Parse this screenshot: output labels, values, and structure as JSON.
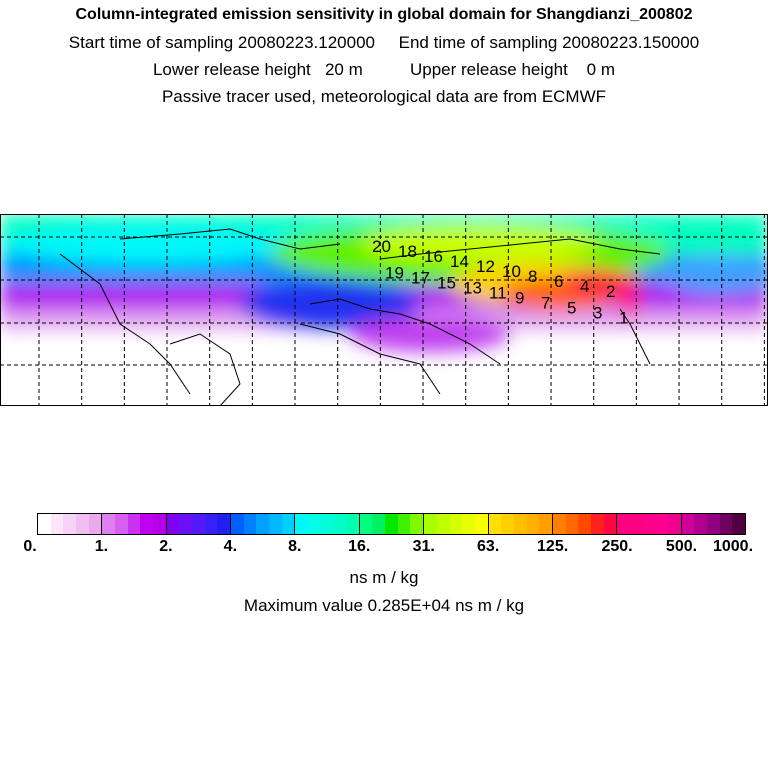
{
  "header": {
    "title": "Column-integrated emission sensitivity in global domain for Shangdianzi_200802",
    "line2": "Start time of sampling 20080223.120000     End time of sampling 20080223.150000",
    "line3": "Lower release height   20 m          Upper release height    0 m",
    "line4": "Passive tracer used, meteorological data are from ECMWF"
  },
  "chart_data": {
    "type": "heatmap",
    "title": "Column-integrated emission sensitivity in global domain for Shangdianzi_200802",
    "colorbar": {
      "tick_labels": [
        "0.",
        "1.",
        "2.",
        "4.",
        "8.",
        "16.",
        "31.",
        "63.",
        "125.",
        "250.",
        "500.",
        "1000."
      ],
      "unit": "ns m / kg",
      "segments": [
        [
          "#ffffff",
          "#fbe6fb",
          "#f6d2f6",
          "#f1bef1",
          "#eaa8ee"
        ],
        [
          "#e080f0",
          "#d860f0",
          "#cc30f0",
          "#c000f0",
          "#b800e8"
        ],
        [
          "#8000f0",
          "#6a10f8",
          "#5518f8",
          "#3a20f8",
          "#2020f0"
        ],
        [
          "#0060ff",
          "#0080ff",
          "#00a0ff",
          "#00b8ff",
          "#00d0ff"
        ],
        [
          "#00f8f8",
          "#00ffe8",
          "#00ffd8",
          "#00ffc8",
          "#00ffb0"
        ],
        [
          "#00ff80",
          "#00f060",
          "#00e800",
          "#40f000",
          "#80f800"
        ],
        [
          "#a8ff00",
          "#c0ff00",
          "#d8ff00",
          "#e8ff00",
          "#f8ff00"
        ],
        [
          "#ffe000",
          "#ffd000",
          "#ffc000",
          "#ffb000",
          "#ffa000"
        ],
        [
          "#ff8000",
          "#ff6800",
          "#ff4800",
          "#ff2020",
          "#ff0840"
        ],
        [
          "#ff0080",
          "#ff0080",
          "#ff0088",
          "#ff0090",
          "#f00090"
        ],
        [
          "#d00098",
          "#b00090",
          "#900080",
          "#700060",
          "#500040"
        ]
      ]
    },
    "max_value_text": "Maximum value  0.285E+04 ns m / kg",
    "trajectory_labels": [
      "20",
      "19",
      "18",
      "17",
      "16",
      "15",
      "14",
      "13",
      "12",
      "11",
      "10",
      "9",
      "8",
      "7",
      "6",
      "5",
      "4",
      "3",
      "2",
      "1"
    ]
  }
}
